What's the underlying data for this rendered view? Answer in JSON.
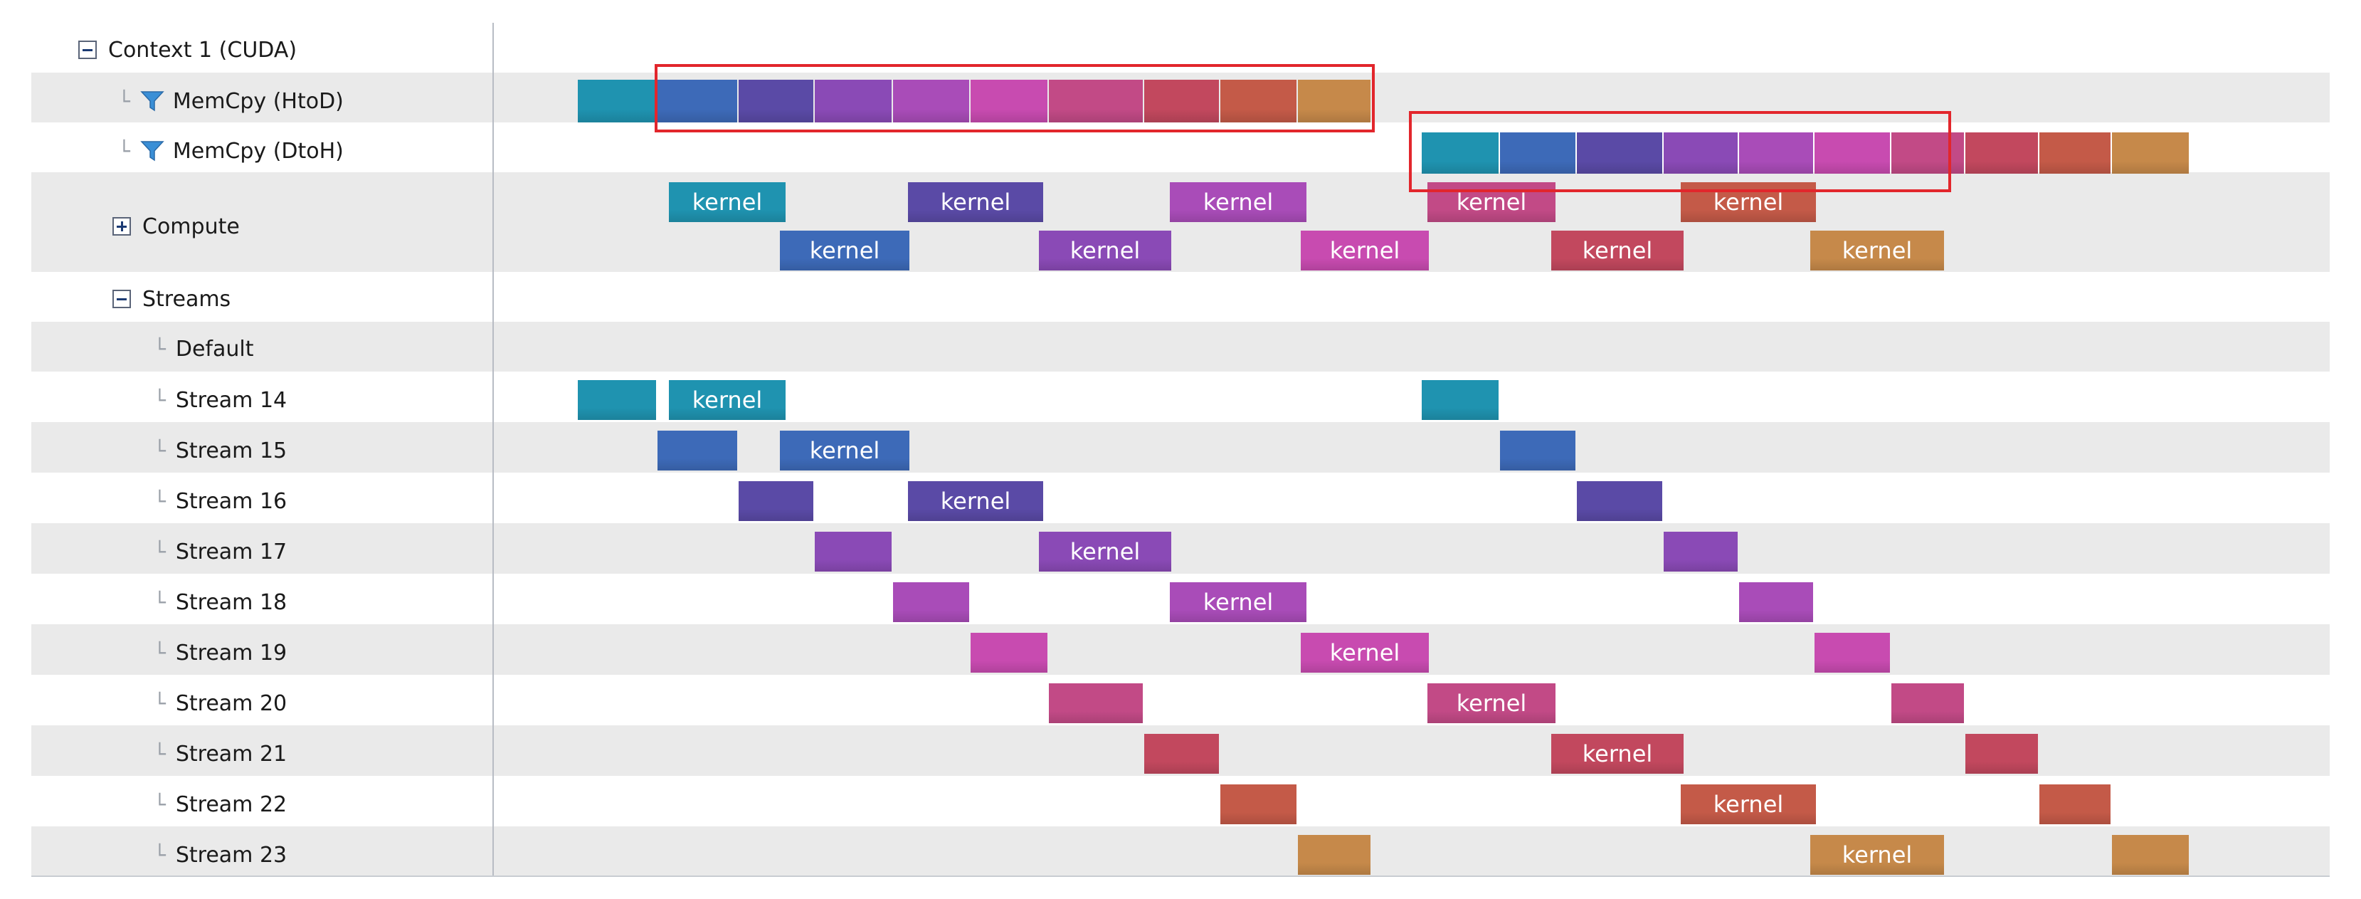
{
  "tree": {
    "context": "Context 1 (CUDA)",
    "memcpy_htod": "MemCpy (HtoD)",
    "memcpy_dtoh": "MemCpy (DtoH)",
    "compute": "Compute",
    "streams": "Streams",
    "default_stream": "Default",
    "streams_list": [
      "Stream 14",
      "Stream 15",
      "Stream 16",
      "Stream 17",
      "Stream 18",
      "Stream 19",
      "Stream 20",
      "Stream 21",
      "Stream 22",
      "Stream 23"
    ]
  },
  "kernel_label": "kernel",
  "colors": {
    "stream_palette": [
      "#1f93b0",
      "#3d6ab8",
      "#5a4aa6",
      "#8a4ab6",
      "#a94cb8",
      "#c84bb0",
      "#c24a86",
      "#c2485e",
      "#c45a48",
      "#c6894a"
    ],
    "selection": "#e2262c",
    "row_alt": "#eaeaea",
    "divider": "#b8bcc4"
  },
  "icons": {
    "expanded": "minus-toggle-icon",
    "collapsed": "plus-toggle-icon",
    "filter": "funnel-filter-icon"
  }
}
